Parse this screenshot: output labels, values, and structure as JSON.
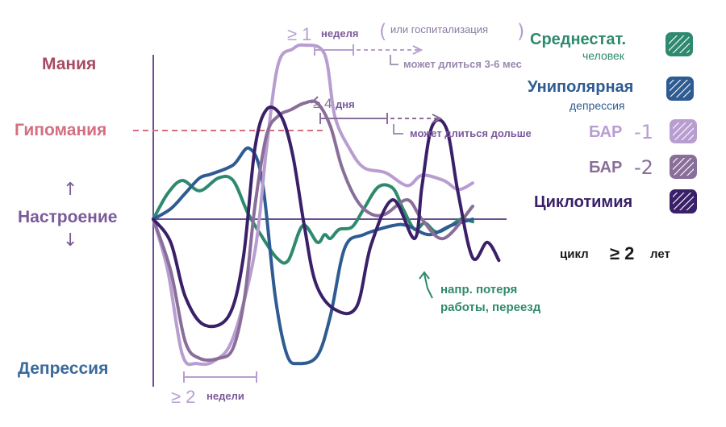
{
  "chart_data": {
    "type": "line",
    "y_levels": [
      "Мания",
      "Гипомания",
      "Настроение",
      "Депрессия"
    ],
    "y_colors": [
      "#a84a63",
      "#d46e80",
      "#7a5a9a",
      "#3a6a9a"
    ],
    "series": [
      {
        "name": "Среднестат. человек",
        "color": "#2e8a6e",
        "values": [
          [
            0,
            0
          ],
          [
            10,
            20
          ],
          [
            20,
            30
          ],
          [
            32,
            22
          ],
          [
            45,
            32
          ],
          [
            55,
            30
          ],
          [
            65,
            5
          ],
          [
            74,
            -12
          ],
          [
            85,
            -30
          ],
          [
            93,
            -32
          ],
          [
            103,
            -5
          ],
          [
            113,
            -18
          ],
          [
            118,
            -12
          ],
          [
            122,
            -15
          ],
          [
            128,
            -8
          ],
          [
            137,
            -6
          ],
          [
            145,
            8
          ],
          [
            155,
            25
          ],
          [
            165,
            24
          ],
          [
            172,
            8
          ],
          [
            180,
            -8
          ],
          [
            187,
            -3
          ],
          [
            195,
            -10
          ],
          [
            205,
            -5
          ],
          [
            212,
            0
          ],
          [
            220,
            -2
          ]
        ]
      },
      {
        "name": "Униполярная депрессия",
        "color": "#2e5c92",
        "values": [
          [
            0,
            0
          ],
          [
            12,
            8
          ],
          [
            22,
            20
          ],
          [
            32,
            32
          ],
          [
            40,
            35
          ],
          [
            55,
            42
          ],
          [
            66,
            55
          ],
          [
            75,
            30
          ],
          [
            84,
            -60
          ],
          [
            92,
            -105
          ],
          [
            100,
            -112
          ],
          [
            113,
            -106
          ],
          [
            122,
            -75
          ],
          [
            132,
            -22
          ],
          [
            145,
            -12
          ],
          [
            165,
            -5
          ],
          [
            175,
            -5
          ],
          [
            190,
            -12
          ],
          [
            205,
            -5
          ],
          [
            220,
            0
          ]
        ]
      },
      {
        "name": "БАР-1",
        "color": "#b89ed0",
        "values": [
          [
            0,
            0
          ],
          [
            10,
            -40
          ],
          [
            20,
            -105
          ],
          [
            30,
            -112
          ],
          [
            42,
            -110
          ],
          [
            55,
            -92
          ],
          [
            70,
            -25
          ],
          [
            78,
            55
          ],
          [
            86,
            120
          ],
          [
            96,
            132
          ],
          [
            104,
            135
          ],
          [
            118,
            128
          ],
          [
            125,
            80
          ],
          [
            135,
            55
          ],
          [
            145,
            40
          ],
          [
            160,
            36
          ],
          [
            175,
            26
          ],
          [
            185,
            34
          ],
          [
            200,
            30
          ],
          [
            210,
            23
          ],
          [
            220,
            28
          ]
        ]
      },
      {
        "name": "БАР-2",
        "color": "#8a6e9a",
        "values": [
          [
            0,
            0
          ],
          [
            12,
            -40
          ],
          [
            22,
            -95
          ],
          [
            32,
            -108
          ],
          [
            45,
            -108
          ],
          [
            55,
            -100
          ],
          [
            63,
            -60
          ],
          [
            70,
            10
          ],
          [
            78,
            65
          ],
          [
            86,
            80
          ],
          [
            95,
            85
          ],
          [
            104,
            90
          ],
          [
            113,
            90
          ],
          [
            122,
            72
          ],
          [
            130,
            40
          ],
          [
            140,
            15
          ],
          [
            150,
            4
          ],
          [
            160,
            4
          ],
          [
            175,
            15
          ],
          [
            185,
            0
          ],
          [
            200,
            -15
          ],
          [
            220,
            10
          ]
        ]
      },
      {
        "name": "Циклотимия",
        "color": "#3a2068",
        "values": [
          [
            0,
            0
          ],
          [
            12,
            -18
          ],
          [
            22,
            -60
          ],
          [
            35,
            -82
          ],
          [
            52,
            -75
          ],
          [
            62,
            -30
          ],
          [
            70,
            55
          ],
          [
            78,
            85
          ],
          [
            88,
            80
          ],
          [
            96,
            50
          ],
          [
            104,
            -5
          ],
          [
            112,
            -50
          ],
          [
            125,
            -70
          ],
          [
            140,
            -68
          ],
          [
            150,
            -20
          ],
          [
            165,
            15
          ],
          [
            180,
            -15
          ],
          [
            185,
            25
          ],
          [
            192,
            72
          ],
          [
            202,
            70
          ],
          [
            210,
            20
          ],
          [
            220,
            -30
          ],
          [
            230,
            -18
          ],
          [
            238,
            -32
          ]
        ]
      }
    ],
    "legend": [
      "Среднестат.",
      "человек",
      "Униполярная",
      "депрессия",
      "БАР",
      "-1",
      "БАР",
      "-2",
      "Циклотимия"
    ],
    "annotations": {
      "week_sign": "≥ 1",
      "week": "неделя",
      "hosp": "или госпитализация",
      "lasting_3_6": "может длиться 3-6 мес",
      "days_sign": "≥ 4",
      "days": "дня",
      "lasting_longer": "может длиться дольше",
      "weeks_sign": "≥ 2",
      "weeks": "недели",
      "job_loss": "напр. потеря",
      "job_loss2": "работы, переезд",
      "cycle": "цикл",
      "cycle_sign": "≥ 2",
      "cycle_years": "лет"
    },
    "arrows": [
      "↑",
      "↓"
    ]
  }
}
